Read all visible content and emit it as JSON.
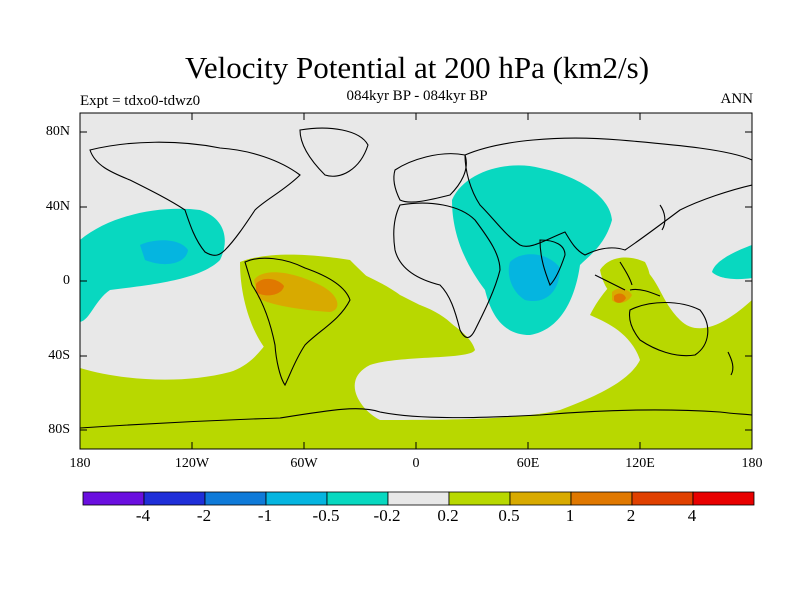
{
  "title": "Velocity Potential at 200 hPa (km2/s)",
  "subtitle": "084kyr BP - 084kyr BP",
  "left_label": "Expt = tdxo0-tdwz0",
  "right_label": "ANN",
  "lat_labels": [
    "80N",
    "40N",
    "0",
    "40S",
    "80S"
  ],
  "lon_labels": [
    "180",
    "120W",
    "60W",
    "0",
    "60E",
    "120E",
    "180"
  ],
  "colorbar": {
    "colors": [
      "#6a0fdf",
      "#1f2fd8",
      "#0f7ad8",
      "#05b5e0",
      "#08d8c0",
      "#e8e8e8",
      "#b8d800",
      "#d8aa00",
      "#e07800",
      "#e04000",
      "#e80000"
    ],
    "labels": [
      "-4",
      "-2",
      "-1",
      "-0.5",
      "-0.2",
      "0.2",
      "0.5",
      "1",
      "2",
      "4"
    ]
  },
  "colors": {
    "positive_weak": "#b8d800",
    "positive_mid": "#d8aa00",
    "positive_strong": "#e07800",
    "neutral": "#e8e8e8",
    "negative_weak": "#08d8c0",
    "negative_mid": "#05b5e0"
  }
}
